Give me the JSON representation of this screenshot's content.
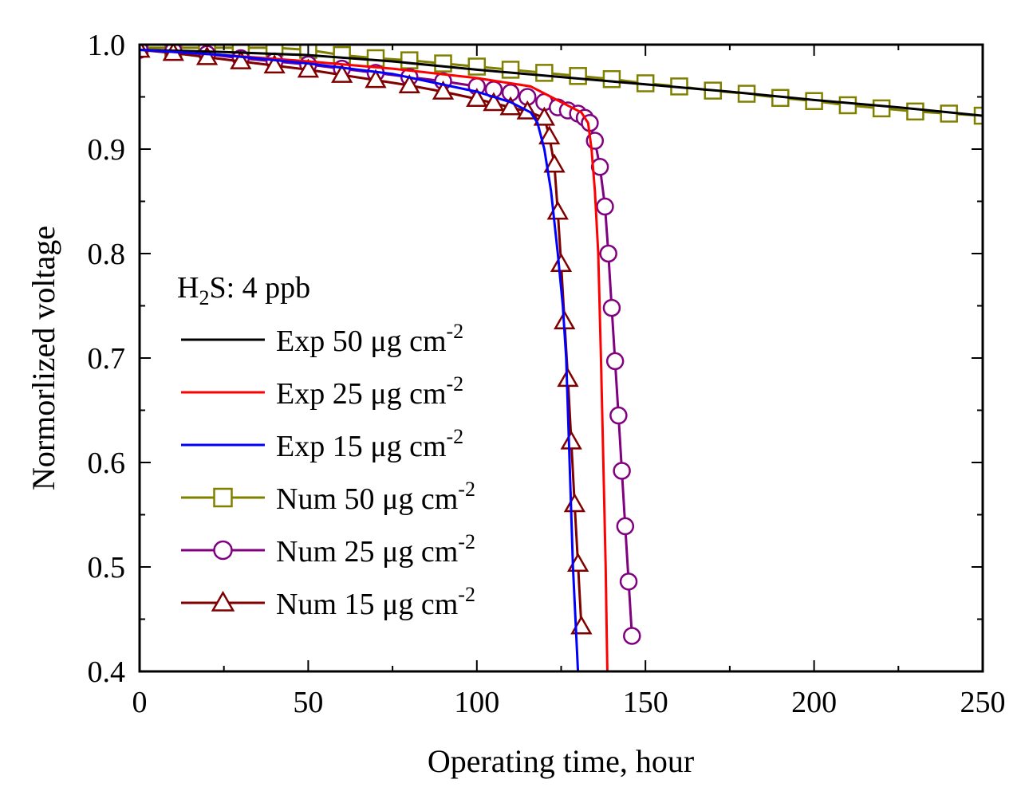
{
  "chart_data": {
    "type": "line",
    "title": "",
    "xlabel": "Operating time, hour",
    "ylabel": "Normorlized voltage",
    "xlim": [
      0,
      250
    ],
    "ylim": [
      0.4,
      1.0
    ],
    "x_ticks": [
      0,
      50,
      100,
      150,
      200,
      250
    ],
    "x_tick_labels": [
      "0",
      "50",
      "100",
      "150",
      "200",
      "250"
    ],
    "y_ticks": [
      0.4,
      0.5,
      0.6,
      0.7,
      0.8,
      0.9,
      1.0
    ],
    "y_tick_labels": [
      "0.4",
      "0.5",
      "0.6",
      "0.7",
      "0.8",
      "0.9",
      "1.0"
    ],
    "annotation": {
      "main": "H",
      "sub": "2",
      "rest": "S: 4 ppb"
    },
    "legend_position": "left",
    "series": [
      {
        "name": "Exp 50 μg cm-2",
        "label_main": "Exp 50 μg cm",
        "label_sup": "-2",
        "color": "#000000",
        "marker": "none",
        "points": [
          [
            0,
            0.995
          ],
          [
            25,
            0.993
          ],
          [
            50,
            0.99
          ],
          [
            75,
            0.984
          ],
          [
            100,
            0.976
          ],
          [
            125,
            0.969
          ],
          [
            150,
            0.962
          ],
          [
            175,
            0.955
          ],
          [
            200,
            0.947
          ],
          [
            225,
            0.94
          ],
          [
            250,
            0.932
          ]
        ]
      },
      {
        "name": "Exp 25 μg cm-2",
        "label_main": "Exp 25 μg cm",
        "label_sup": "-2",
        "color": "#ff0000",
        "marker": "none",
        "points": [
          [
            0,
            0.995
          ],
          [
            25,
            0.99
          ],
          [
            50,
            0.984
          ],
          [
            75,
            0.977
          ],
          [
            100,
            0.968
          ],
          [
            116,
            0.96
          ],
          [
            122,
            0.95
          ],
          [
            128,
            0.94
          ],
          [
            131,
            0.935
          ],
          [
            133,
            0.925
          ],
          [
            134,
            0.9
          ],
          [
            135,
            0.86
          ],
          [
            136,
            0.8
          ],
          [
            136.8,
            0.7
          ],
          [
            137.5,
            0.6
          ],
          [
            138.2,
            0.5
          ],
          [
            138.7,
            0.4
          ]
        ]
      },
      {
        "name": "Exp 15 μg cm-2",
        "label_main": "Exp 15 μg cm",
        "label_sup": "-2",
        "color": "#0000ff",
        "marker": "none",
        "points": [
          [
            0,
            0.995
          ],
          [
            25,
            0.99
          ],
          [
            50,
            0.982
          ],
          [
            75,
            0.972
          ],
          [
            100,
            0.955
          ],
          [
            110,
            0.945
          ],
          [
            116,
            0.935
          ],
          [
            118,
            0.925
          ],
          [
            120,
            0.9
          ],
          [
            122,
            0.86
          ],
          [
            124,
            0.8
          ],
          [
            125.5,
            0.75
          ],
          [
            126.5,
            0.7
          ],
          [
            127.5,
            0.6
          ],
          [
            128.5,
            0.5
          ],
          [
            130,
            0.4
          ]
        ]
      },
      {
        "name": "Num 50 μg cm-2",
        "label_main": "Num 50 μg cm",
        "label_sup": "-2",
        "color": "#808000",
        "marker": "square",
        "points": [
          [
            0,
            0.997
          ],
          [
            10,
            0.997
          ],
          [
            20,
            0.997
          ],
          [
            30,
            0.997
          ],
          [
            40,
            0.997
          ],
          [
            50,
            0.995
          ],
          [
            60,
            0.99
          ],
          [
            70,
            0.987
          ],
          [
            80,
            0.985
          ],
          [
            90,
            0.982
          ],
          [
            100,
            0.979
          ],
          [
            110,
            0.976
          ],
          [
            120,
            0.973
          ],
          [
            130,
            0.97
          ],
          [
            140,
            0.967
          ],
          [
            150,
            0.963
          ],
          [
            160,
            0.96
          ],
          [
            170,
            0.956
          ],
          [
            180,
            0.953
          ],
          [
            190,
            0.949
          ],
          [
            200,
            0.946
          ],
          [
            210,
            0.942
          ],
          [
            220,
            0.939
          ],
          [
            230,
            0.936
          ],
          [
            240,
            0.934
          ],
          [
            250,
            0.932
          ]
        ]
      },
      {
        "name": "Num 25 μg cm-2",
        "label_main": "Num 25 μg cm",
        "label_sup": "-2",
        "color": "#800080",
        "marker": "circle",
        "points": [
          [
            0,
            0.995
          ],
          [
            10,
            0.994
          ],
          [
            20,
            0.991
          ],
          [
            30,
            0.987
          ],
          [
            40,
            0.984
          ],
          [
            50,
            0.981
          ],
          [
            60,
            0.977
          ],
          [
            70,
            0.973
          ],
          [
            80,
            0.969
          ],
          [
            90,
            0.965
          ],
          [
            100,
            0.96
          ],
          [
            105,
            0.957
          ],
          [
            110,
            0.954
          ],
          [
            115,
            0.95
          ],
          [
            120,
            0.945
          ],
          [
            124,
            0.94
          ],
          [
            127,
            0.937
          ],
          [
            130,
            0.934
          ],
          [
            132,
            0.93
          ],
          [
            133.5,
            0.925
          ],
          [
            135,
            0.908
          ],
          [
            136.5,
            0.883
          ],
          [
            138,
            0.845
          ],
          [
            139,
            0.8
          ],
          [
            140,
            0.748
          ],
          [
            141,
            0.697
          ],
          [
            142,
            0.645
          ],
          [
            143,
            0.592
          ],
          [
            144,
            0.539
          ],
          [
            145,
            0.486
          ],
          [
            146,
            0.434
          ]
        ]
      },
      {
        "name": "Num 15 μg cm-2",
        "label_main": "Num 15 μg cm",
        "label_sup": "-2",
        "color": "#800000",
        "marker": "triangle",
        "points": [
          [
            0,
            0.995
          ],
          [
            10,
            0.992
          ],
          [
            20,
            0.988
          ],
          [
            30,
            0.984
          ],
          [
            40,
            0.98
          ],
          [
            50,
            0.976
          ],
          [
            60,
            0.971
          ],
          [
            70,
            0.966
          ],
          [
            80,
            0.961
          ],
          [
            90,
            0.955
          ],
          [
            100,
            0.948
          ],
          [
            105,
            0.944
          ],
          [
            110,
            0.94
          ],
          [
            115,
            0.936
          ],
          [
            120,
            0.93
          ],
          [
            121.5,
            0.912
          ],
          [
            123,
            0.885
          ],
          [
            124,
            0.84
          ],
          [
            125,
            0.79
          ],
          [
            126,
            0.735
          ],
          [
            127,
            0.68
          ],
          [
            128,
            0.62
          ],
          [
            129,
            0.56
          ],
          [
            130,
            0.503
          ],
          [
            131,
            0.443
          ]
        ]
      }
    ]
  }
}
